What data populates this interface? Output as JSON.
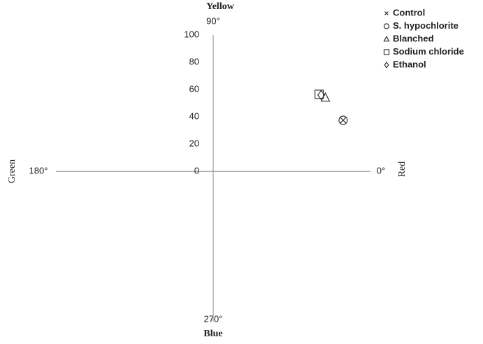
{
  "chart_data": {
    "type": "scatter",
    "annotations": {
      "top": "Yellow",
      "bottom": "Blue",
      "left": "Green",
      "right": "Red"
    },
    "angle_labels": {
      "top": "90°",
      "left": "180°",
      "right": "0°",
      "bottom": "270°"
    },
    "xlim": [
      -115,
      115
    ],
    "ylim": [
      -110,
      100
    ],
    "yticks": [
      0,
      20,
      40,
      60,
      80,
      100
    ],
    "axis_color": "#999999",
    "series": [
      {
        "name": "Control",
        "marker": "x",
        "color": "#333333",
        "x": [
          95
        ],
        "values": [
          37.5
        ]
      },
      {
        "name": "S. hypochlorite",
        "marker": "circle",
        "color": "#333333",
        "x": [
          95
        ],
        "values": [
          37.5
        ]
      },
      {
        "name": "Blanched",
        "marker": "triangle",
        "color": "#333333",
        "x": [
          82
        ],
        "values": [
          54
        ]
      },
      {
        "name": "Sodium chloride",
        "marker": "square",
        "color": "#333333",
        "x": [
          77.5
        ],
        "values": [
          56.5
        ]
      },
      {
        "name": "Ethanol",
        "marker": "diamond",
        "color": "#333333",
        "x": [
          79
        ],
        "values": [
          56
        ]
      }
    ]
  }
}
